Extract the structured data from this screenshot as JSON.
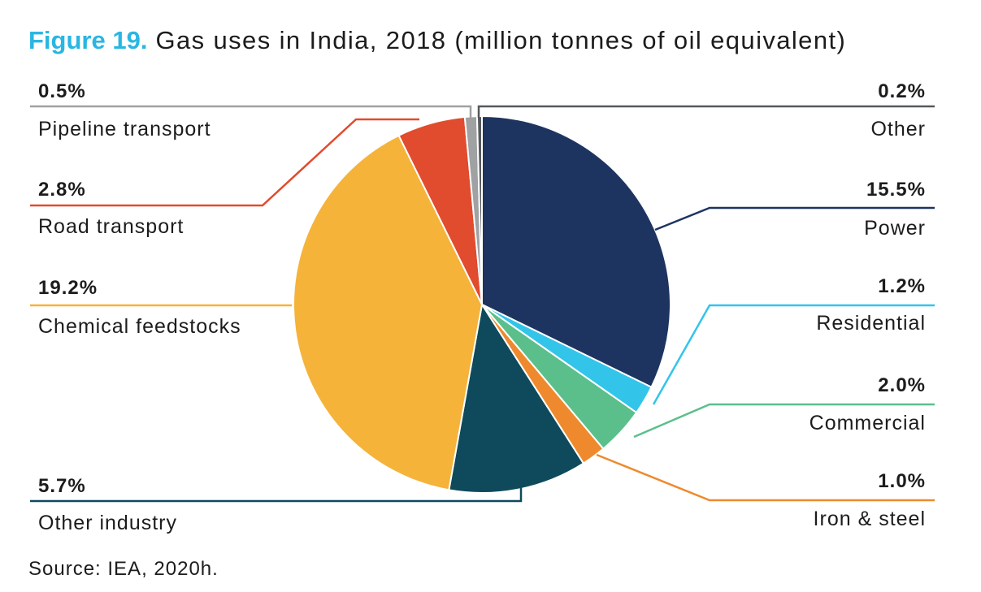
{
  "chart_data": {
    "type": "pie",
    "figure_label": "Figure 19.",
    "title": "Gas uses in India, 2018 (million tonnes of oil equivalent)",
    "slices": [
      {
        "label": "Power",
        "value": 15.5,
        "value_label": "15.5%",
        "color": "#1e3460"
      },
      {
        "label": "Residential",
        "value": 1.2,
        "value_label": "1.2%",
        "color": "#33c4ea"
      },
      {
        "label": "Commercial",
        "value": 2.0,
        "value_label": "2.0%",
        "color": "#5bbf8c"
      },
      {
        "label": "Iron & steel",
        "value": 1.0,
        "value_label": "1.0%",
        "color": "#ee8a2d"
      },
      {
        "label": "Other industry",
        "value": 5.7,
        "value_label": "5.7%",
        "color": "#0e4a5b"
      },
      {
        "label": "Chemical feedstocks",
        "value": 19.2,
        "value_label": "19.2%",
        "color": "#f5b33a"
      },
      {
        "label": "Road transport",
        "value": 2.8,
        "value_label": "2.8%",
        "color": "#e14b2e"
      },
      {
        "label": "Pipeline transport",
        "value": 0.5,
        "value_label": "0.5%",
        "color": "#9fa1a3"
      },
      {
        "label": "Other",
        "value": 0.2,
        "value_label": "0.2%",
        "color": "#54585b"
      }
    ],
    "source": "Source: IEA, 2020h."
  }
}
